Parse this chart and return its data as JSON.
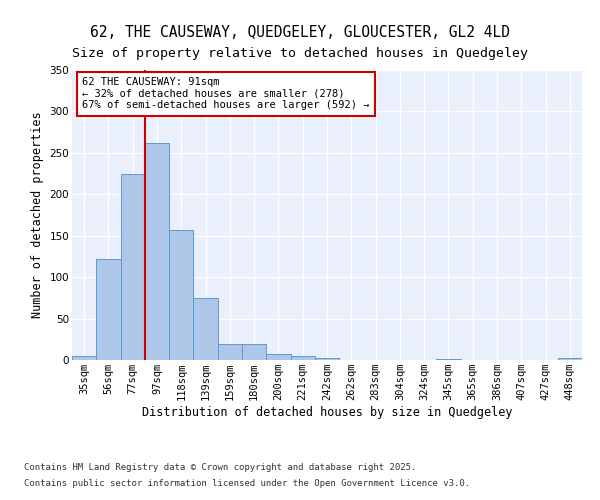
{
  "title_line1": "62, THE CAUSEWAY, QUEDGELEY, GLOUCESTER, GL2 4LD",
  "title_line2": "Size of property relative to detached houses in Quedgeley",
  "xlabel": "Distribution of detached houses by size in Quedgeley",
  "ylabel": "Number of detached properties",
  "categories": [
    "35sqm",
    "56sqm",
    "77sqm",
    "97sqm",
    "118sqm",
    "139sqm",
    "159sqm",
    "180sqm",
    "200sqm",
    "221sqm",
    "242sqm",
    "262sqm",
    "283sqm",
    "304sqm",
    "324sqm",
    "345sqm",
    "365sqm",
    "386sqm",
    "407sqm",
    "427sqm",
    "448sqm"
  ],
  "values": [
    5,
    122,
    224,
    262,
    157,
    75,
    19,
    19,
    7,
    5,
    3,
    0,
    0,
    0,
    0,
    1,
    0,
    0,
    0,
    0,
    2
  ],
  "bar_color": "#aec6e8",
  "bar_edge_color": "#5b9bd5",
  "red_line_x": 2.5,
  "annotation_text": "62 THE CAUSEWAY: 91sqm\n← 32% of detached houses are smaller (278)\n67% of semi-detached houses are larger (592) →",
  "annotation_box_color": "#ffffff",
  "annotation_box_edge": "#cc0000",
  "ylim": [
    0,
    350
  ],
  "yticks": [
    0,
    50,
    100,
    150,
    200,
    250,
    300,
    350
  ],
  "background_color": "#eaf0fb",
  "grid_color": "#ffffff",
  "footer_line1": "Contains HM Land Registry data © Crown copyright and database right 2025.",
  "footer_line2": "Contains public sector information licensed under the Open Government Licence v3.0.",
  "title_fontsize": 10.5,
  "subtitle_fontsize": 9.5,
  "label_fontsize": 8.5,
  "tick_fontsize": 7.5,
  "annotation_fontsize": 7.5,
  "footer_fontsize": 6.5
}
